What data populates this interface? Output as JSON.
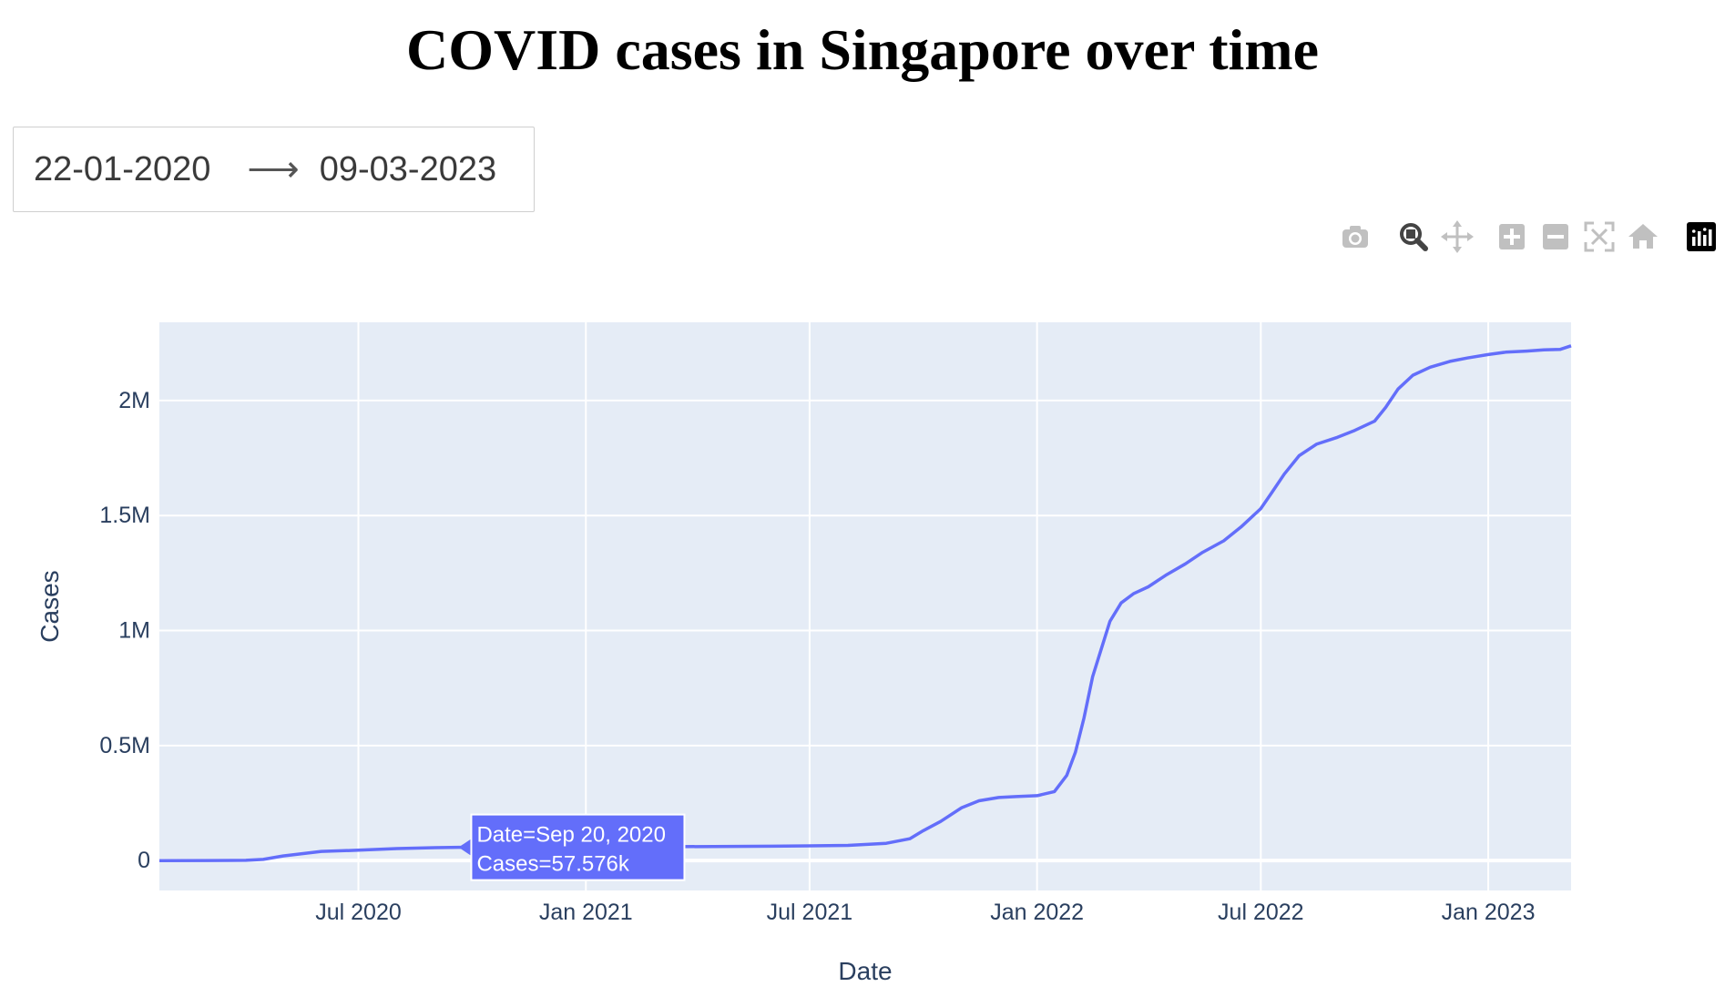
{
  "page": {
    "title": "COVID cases in Singapore over time"
  },
  "date_picker": {
    "start": "22-01-2020",
    "arrow": "⟶",
    "end": "09-03-2023"
  },
  "modebar": {
    "buttons": [
      {
        "name": "camera-icon",
        "tooltip": "Download plot as a png"
      },
      {
        "name": "zoom-icon",
        "tooltip": "Zoom"
      },
      {
        "name": "pan-icon",
        "tooltip": "Pan"
      },
      {
        "name": "zoom-in-icon",
        "tooltip": "Zoom in"
      },
      {
        "name": "zoom-out-icon",
        "tooltip": "Zoom out"
      },
      {
        "name": "autoscale-icon",
        "tooltip": "Autoscale"
      },
      {
        "name": "reset-axes-icon",
        "tooltip": "Reset axes"
      },
      {
        "name": "plotly-logo-icon",
        "tooltip": "Produced with Plotly"
      }
    ]
  },
  "colors": {
    "line": "#636efa",
    "plot_bg": "#e5ecf6",
    "grid": "#ffffff",
    "axis_text": "#2a3f5f",
    "modebar_icon": "#c0c0c0",
    "modebar_active": "#444444"
  },
  "chart_data": {
    "type": "line",
    "title": "COVID cases in Singapore over time",
    "xlabel": "Date",
    "ylabel": "Cases",
    "x_range": [
      "2020-01-22",
      "2023-03-09"
    ],
    "ylim": [
      -130000,
      2340000
    ],
    "y_ticks": [
      0,
      500000,
      1000000,
      1500000,
      2000000
    ],
    "y_tick_labels": [
      "0",
      "0.5M",
      "1M",
      "1.5M",
      "2M"
    ],
    "x_ticks": [
      "2020-07-01",
      "2021-01-01",
      "2021-07-01",
      "2022-01-01",
      "2022-07-01",
      "2023-01-01"
    ],
    "x_tick_labels": [
      "Jul 2020",
      "Jan 2021",
      "Jul 2021",
      "Jan 2022",
      "Jul 2022",
      "Jan 2023"
    ],
    "grid": true,
    "legend": "none",
    "series": [
      {
        "x": [
          "2020-01-22",
          "2020-03-01",
          "2020-04-01",
          "2020-04-15",
          "2020-05-01",
          "2020-06-01",
          "2020-07-01",
          "2020-08-01",
          "2020-09-01",
          "2020-09-20",
          "2020-12-01",
          "2021-03-01",
          "2021-06-01",
          "2021-08-01",
          "2021-09-01",
          "2021-09-20",
          "2021-10-01",
          "2021-10-15",
          "2021-11-01",
          "2021-11-15",
          "2021-12-01",
          "2021-12-15",
          "2022-01-01",
          "2022-01-15",
          "2022-01-25",
          "2022-02-01",
          "2022-02-08",
          "2022-02-15",
          "2022-02-22",
          "2022-03-01",
          "2022-03-10",
          "2022-03-20",
          "2022-04-01",
          "2022-04-15",
          "2022-05-01",
          "2022-05-15",
          "2022-06-01",
          "2022-06-15",
          "2022-07-01",
          "2022-07-10",
          "2022-07-20",
          "2022-08-01",
          "2022-08-15",
          "2022-09-01",
          "2022-09-15",
          "2022-10-01",
          "2022-10-10",
          "2022-10-20",
          "2022-11-01",
          "2022-11-15",
          "2022-12-01",
          "2022-12-15",
          "2023-01-01",
          "2023-01-15",
          "2023-02-01",
          "2023-02-15",
          "2023-02-28",
          "2023-03-09"
        ],
        "y": [
          0,
          100,
          1000,
          5000,
          20000,
          40000,
          45000,
          52000,
          56000,
          57576,
          58300,
          60000,
          62200,
          66000,
          75000,
          95000,
          130000,
          170000,
          230000,
          260000,
          274000,
          278000,
          282000,
          300000,
          370000,
          470000,
          620000,
          800000,
          920000,
          1040000,
          1120000,
          1160000,
          1190000,
          1240000,
          1290000,
          1340000,
          1390000,
          1450000,
          1530000,
          1600000,
          1680000,
          1760000,
          1810000,
          1840000,
          1870000,
          1910000,
          1970000,
          2050000,
          2110000,
          2145000,
          2170000,
          2185000,
          2200000,
          2210000,
          2215000,
          2220000,
          2222000,
          2238000
        ]
      }
    ],
    "tooltip": {
      "date_text": "Date=Sep 20, 2020",
      "cases_text": "Cases=57.576k",
      "x": "2020-09-20",
      "y": 57576
    }
  }
}
